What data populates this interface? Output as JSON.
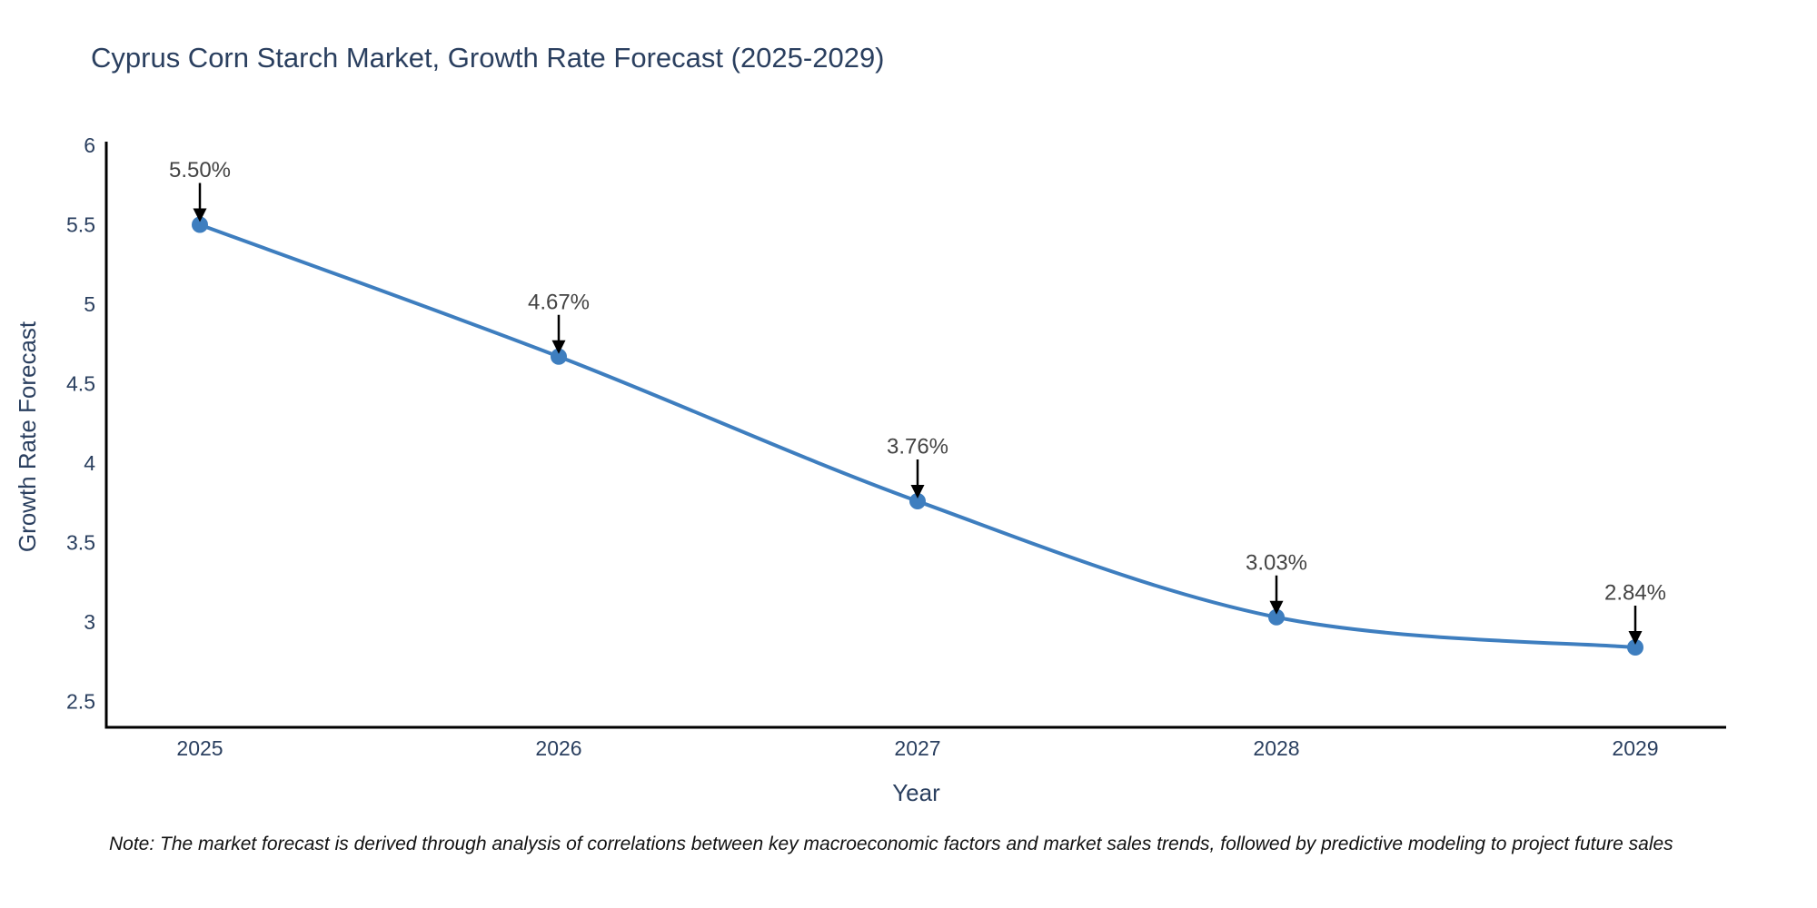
{
  "header": {
    "title": "Cyprus Corn Starch Market, Growth Rate Forecast (2025-2029)"
  },
  "footnote": "Note: The market forecast is derived through analysis of correlations between key macroeconomic factors and market sales trends, followed by predictive modeling to project future sales",
  "colors": {
    "line": "#3e7ebf",
    "marker": "#3e7ebf",
    "title_text": "#2a3f5f",
    "axis_text": "#2a3f5f",
    "annotation_text": "#444444",
    "annotation_arrow": "#000000",
    "axis_line": "#000000",
    "background": "#ffffff"
  },
  "chart_data": {
    "type": "line",
    "title": "Cyprus Corn Starch Market, Growth Rate Forecast (2025-2029)",
    "categories": [
      "2025",
      "2026",
      "2027",
      "2028",
      "2029"
    ],
    "x": [
      2025,
      2026,
      2027,
      2028,
      2029
    ],
    "values": [
      5.5,
      4.67,
      3.76,
      3.03,
      2.84
    ],
    "point_labels": [
      "5.50%",
      "4.67%",
      "3.76%",
      "3.03%",
      "2.84%"
    ],
    "xlabel": "Year",
    "ylabel": "Growth Rate Forecast",
    "yticks": [
      2.5,
      3,
      3.5,
      4,
      4.5,
      5,
      5.5,
      6
    ],
    "ylim": [
      2.34,
      6.0
    ],
    "xlim": [
      2024.74,
      2029.25
    ],
    "grid": false,
    "legend": "none",
    "line_shape": "spline",
    "markers": true,
    "annotations_have_arrows": true
  }
}
